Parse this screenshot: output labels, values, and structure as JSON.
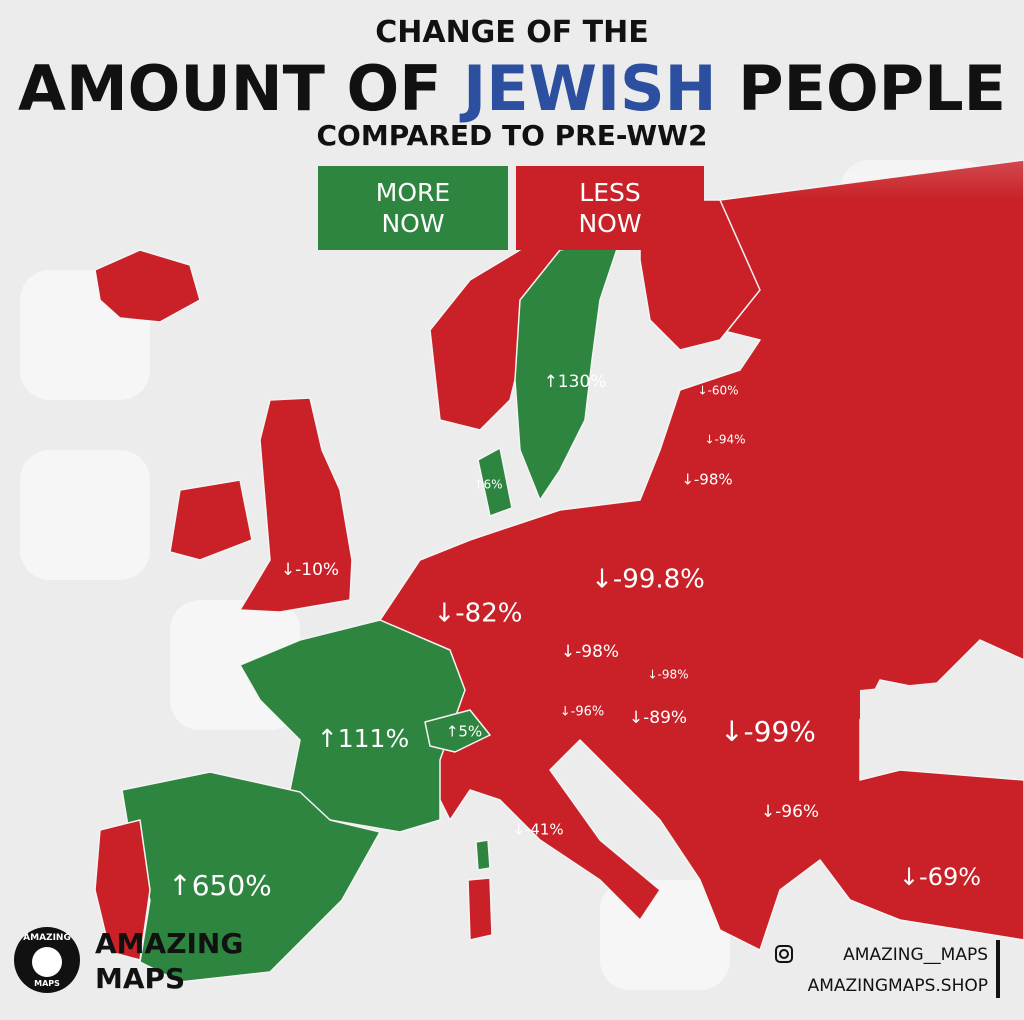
{
  "header": {
    "line1": "CHANGE OF THE",
    "line2_start": "AMOUNT OF",
    "line2_highlight": "JEWISH",
    "line2_end": "PEOPLE",
    "line3": "COMPARED TO PRE-WW2"
  },
  "legend": [
    "MORE NOW",
    "LESS NOW"
  ],
  "regions": [
    {
      "name": "Sweden",
      "label": "↑130%"
    },
    {
      "name": "Estonia",
      "label": "↓-60%"
    },
    {
      "name": "Latvia",
      "label": "↓-94%"
    },
    {
      "name": "Lithuania",
      "label": "↓-98%"
    },
    {
      "name": "Denmark",
      "label": "↑6%"
    },
    {
      "name": "United Kingdom",
      "label": "↓-10%"
    },
    {
      "name": "Germany",
      "label": "↓-82%"
    },
    {
      "name": "Poland",
      "label": "↓-99.8%"
    },
    {
      "name": "Czechia",
      "label": "↓-98%"
    },
    {
      "name": "Slovakia",
      "label": "↓-98%"
    },
    {
      "name": "Austria",
      "label": "↓-96%"
    },
    {
      "name": "Hungary",
      "label": "↓-89%"
    },
    {
      "name": "Romania",
      "label": "↓-99%"
    },
    {
      "name": "France",
      "label": "↑111%"
    },
    {
      "name": "Switzerland",
      "label": "↑5%"
    },
    {
      "name": "Italy",
      "label": "↓-41%"
    },
    {
      "name": "Bulgaria",
      "label": "↓-96%"
    },
    {
      "name": "Turkey",
      "label": "↓-69%"
    },
    {
      "name": "Spain",
      "label": "↑650%"
    }
  ],
  "branding": {
    "logo_top": "AMAZING",
    "logo_bottom": "MAPS",
    "brand_line1": "AMAZING",
    "brand_line2": "MAPS",
    "instagram": "AMAZING__MAPS",
    "shop": "AMAZINGMAPS.SHOP"
  }
}
